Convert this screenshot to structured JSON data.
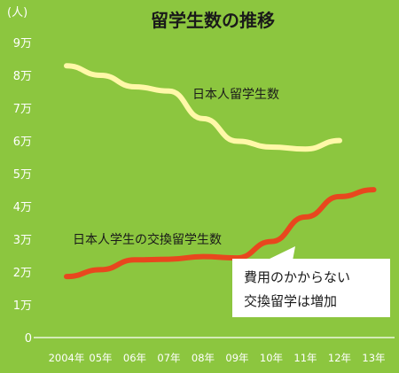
{
  "chart_data": {
    "type": "line",
    "title": "留学生数の推移",
    "ylabel": "(人)",
    "ylim": [
      0,
      90000
    ],
    "yticks": [
      {
        "value": 0,
        "label": "0"
      },
      {
        "value": 10000,
        "label": "1万"
      },
      {
        "value": 20000,
        "label": "2万"
      },
      {
        "value": 30000,
        "label": "3万"
      },
      {
        "value": 40000,
        "label": "4万"
      },
      {
        "value": 50000,
        "label": "5万"
      },
      {
        "value": 60000,
        "label": "6万"
      },
      {
        "value": 70000,
        "label": "7万"
      },
      {
        "value": 80000,
        "label": "8万"
      },
      {
        "value": 90000,
        "label": "9万"
      }
    ],
    "categories": [
      "2004年",
      "05年",
      "06年",
      "07年",
      "08年",
      "09年",
      "10年",
      "11年",
      "12年",
      "13年"
    ],
    "grid": false,
    "series": [
      {
        "name": "日本人留学生数",
        "color": "#fff8a8",
        "values": [
          82900,
          80000,
          76500,
          75200,
          66800,
          59900,
          58100,
          57500,
          60100,
          null
        ]
      },
      {
        "name": "日本人学生の交換留学生数",
        "color": "#e8471e",
        "values": [
          18600,
          20700,
          23700,
          23900,
          24700,
          24300,
          29300,
          36800,
          43000,
          45100
        ]
      }
    ],
    "annotation": {
      "lines": [
        "費用のかからない",
        "交換留学は増加"
      ]
    }
  }
}
